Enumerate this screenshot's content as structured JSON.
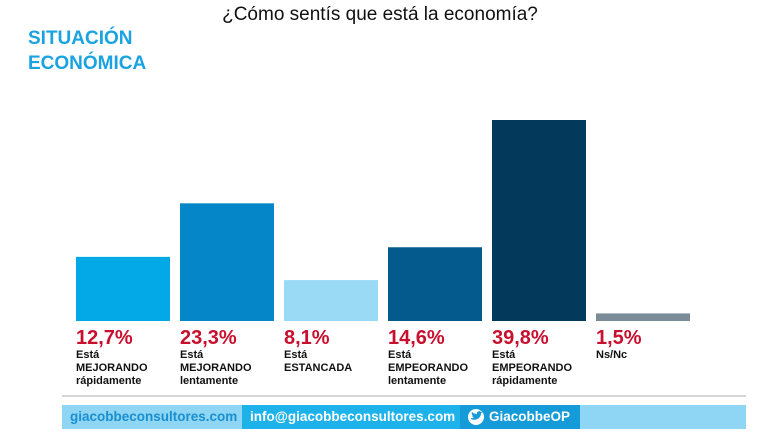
{
  "chart_data": {
    "type": "bar",
    "title": "¿Cómo sentís que está la economía?",
    "subtitle": "SITUACIÓN ECONÓMICA",
    "categories": [
      "Está MEJORANDO rápidamente",
      "Está MEJORANDO lentamente",
      "Está ESTANCADA",
      "Está EMPEORANDO lentamente",
      "Está EMPEORANDO rápidamente",
      "Ns/Nc"
    ],
    "values": [
      12.7,
      23.3,
      8.1,
      14.6,
      39.8,
      1.5
    ],
    "value_labels": [
      "12,7%",
      "23,3%",
      "8,1%",
      "14,6%",
      "39,8%",
      "1,5%"
    ],
    "colors": [
      "#03a9e6",
      "#0586c8",
      "#9bdaf5",
      "#045a8d",
      "#033a5c",
      "#7b8c99"
    ]
  },
  "footer": {
    "website": "giacobbeconsultores.com",
    "email": "info@giacobbeconsultores.com",
    "twitter": "GiacobbeOP"
  }
}
